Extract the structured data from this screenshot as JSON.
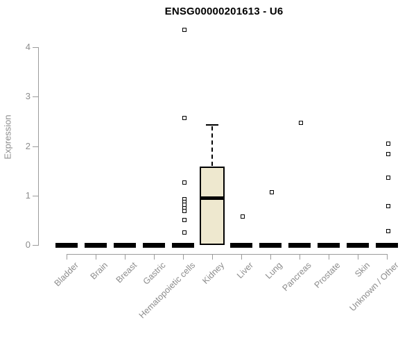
{
  "header": {
    "title": "ENSG00000201613 - U6"
  },
  "chart_data": {
    "type": "boxplot",
    "title": "ENSG00000201613 - U6",
    "xlabel": "",
    "ylabel": "Expression",
    "ylim": [
      0,
      4.4
    ],
    "yticks": [
      0,
      1,
      2,
      3,
      4
    ],
    "grid": false,
    "legend": null,
    "marker": "open-square",
    "categories": [
      "Bladder",
      "Brain",
      "Breast",
      "Gastric",
      "Hematopoietic cells",
      "Kidney",
      "Liver",
      "Lung",
      "Pancreas",
      "Prostate",
      "Skin",
      "Unknown / Other"
    ],
    "boxes": [
      {
        "category": "Bladder",
        "q1": 0,
        "median": 0,
        "q3": 0,
        "whisker_low": 0,
        "whisker_high": 0,
        "outliers": []
      },
      {
        "category": "Brain",
        "q1": 0,
        "median": 0,
        "q3": 0,
        "whisker_low": 0,
        "whisker_high": 0,
        "outliers": []
      },
      {
        "category": "Breast",
        "q1": 0,
        "median": 0,
        "q3": 0,
        "whisker_low": 0,
        "whisker_high": 0,
        "outliers": []
      },
      {
        "category": "Gastric",
        "q1": 0,
        "median": 0,
        "q3": 0,
        "whisker_low": 0,
        "whisker_high": 0,
        "outliers": []
      },
      {
        "category": "Hematopoietic cells",
        "q1": 0,
        "median": 0,
        "q3": 0,
        "whisker_low": 0,
        "whisker_high": 0,
        "outliers": [
          4.35,
          2.57,
          1.26,
          0.93,
          0.87,
          0.81,
          0.75,
          0.69,
          0.51,
          0.25
        ]
      },
      {
        "category": "Kidney",
        "q1": 0,
        "median": 0.95,
        "q3": 1.59,
        "whisker_low": 0,
        "whisker_high": 2.43,
        "outliers": []
      },
      {
        "category": "Liver",
        "q1": 0,
        "median": 0,
        "q3": 0,
        "whisker_low": 0,
        "whisker_high": 0,
        "outliers": [
          0.58
        ]
      },
      {
        "category": "Lung",
        "q1": 0,
        "median": 0,
        "q3": 0,
        "whisker_low": 0,
        "whisker_high": 0,
        "outliers": [
          1.07
        ]
      },
      {
        "category": "Pancreas",
        "q1": 0,
        "median": 0,
        "q3": 0,
        "whisker_low": 0,
        "whisker_high": 0,
        "outliers": [
          2.47
        ]
      },
      {
        "category": "Prostate",
        "q1": 0,
        "median": 0,
        "q3": 0,
        "whisker_low": 0,
        "whisker_high": 0,
        "outliers": []
      },
      {
        "category": "Skin",
        "q1": 0,
        "median": 0,
        "q3": 0,
        "whisker_low": 0,
        "whisker_high": 0,
        "outliers": []
      },
      {
        "category": "Unknown / Other",
        "q1": 0,
        "median": 0,
        "q3": 0,
        "whisker_low": 0,
        "whisker_high": 0,
        "outliers": [
          2.05,
          1.84,
          1.36,
          0.79,
          0.28
        ]
      }
    ],
    "colors": {
      "box_fill": "#eee8cf",
      "box_border": "#000000",
      "axis": "#9b9b9b",
      "tick_text": "#8c8c8c",
      "title_text": "#000000"
    }
  }
}
